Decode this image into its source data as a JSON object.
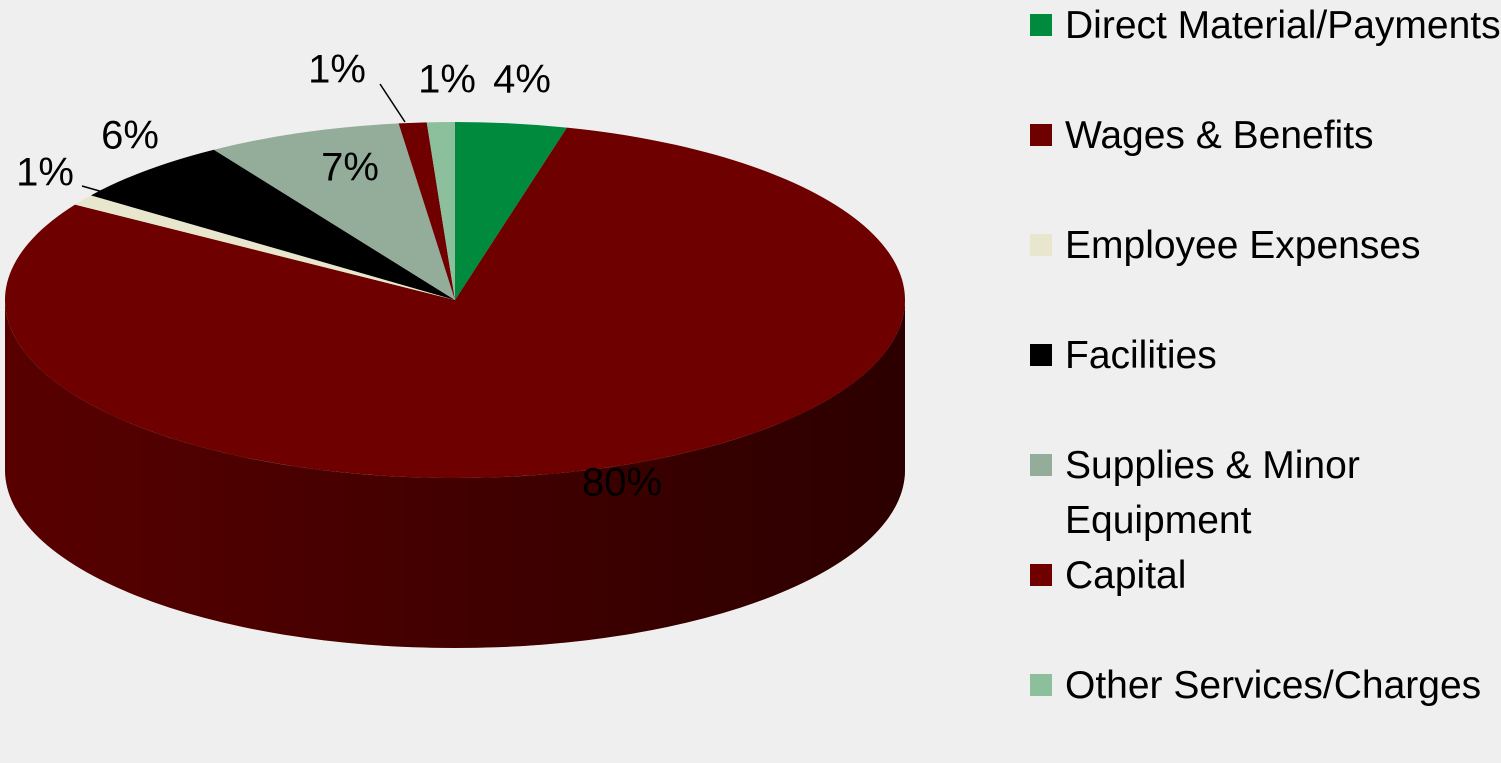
{
  "chart_data": {
    "type": "pie",
    "categories": [
      "Direct Material/Payments",
      "Wages & Benefits",
      "Employee Expenses",
      "Facilities",
      "Supplies & Minor Equipment",
      "Capital",
      "Other Services/Charges"
    ],
    "values": [
      4,
      80,
      1,
      6,
      7,
      1,
      1
    ],
    "value_labels": [
      "4%",
      "80%",
      "1%",
      "6%",
      "7%",
      "1%",
      "1%"
    ],
    "colors": [
      "#008a3e",
      "#6e0000",
      "#e8e6cc",
      "#000000",
      "#93ad9a",
      "#700000",
      "#8cbf9c"
    ],
    "legend": "right"
  }
}
